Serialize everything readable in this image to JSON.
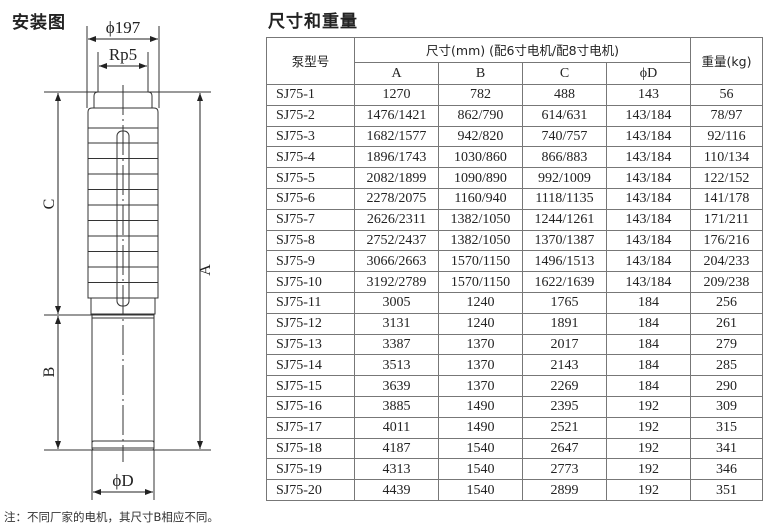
{
  "drawing": {
    "title": "安装图",
    "labels": {
      "outer_diameter": "ϕ197",
      "outlet": "Rp5",
      "dim_a": "A",
      "dim_b": "B",
      "dim_c": "C",
      "dim_d": "ϕD"
    },
    "note": "注：不同厂家的电机，其尺寸B相应不同。"
  },
  "table": {
    "title": "尺寸和重量",
    "header": {
      "model": "泵型号",
      "dims_group": "尺寸(mm) (配6寸电机/配8寸电机)",
      "weight": "重量(kg)",
      "cols": [
        "A",
        "B",
        "C",
        "ϕD"
      ]
    },
    "rows": [
      [
        "SJ75-1",
        "1270",
        "782",
        "488",
        "143",
        "56"
      ],
      [
        "SJ75-2",
        "1476/1421",
        "862/790",
        "614/631",
        "143/184",
        "78/97"
      ],
      [
        "SJ75-3",
        "1682/1577",
        "942/820",
        "740/757",
        "143/184",
        "92/116"
      ],
      [
        "SJ75-4",
        "1896/1743",
        "1030/860",
        "866/883",
        "143/184",
        "110/134"
      ],
      [
        "SJ75-5",
        "2082/1899",
        "1090/890",
        "992/1009",
        "143/184",
        "122/152"
      ],
      [
        "SJ75-6",
        "2278/2075",
        "1160/940",
        "1118/1135",
        "143/184",
        "141/178"
      ],
      [
        "SJ75-7",
        "2626/2311",
        "1382/1050",
        "1244/1261",
        "143/184",
        "171/211"
      ],
      [
        "SJ75-8",
        "2752/2437",
        "1382/1050",
        "1370/1387",
        "143/184",
        "176/216"
      ],
      [
        "SJ75-9",
        "3066/2663",
        "1570/1150",
        "1496/1513",
        "143/184",
        "204/233"
      ],
      [
        "SJ75-10",
        "3192/2789",
        "1570/1150",
        "1622/1639",
        "143/184",
        "209/238"
      ],
      [
        "SJ75-11",
        "3005",
        "1240",
        "1765",
        "184",
        "256"
      ],
      [
        "SJ75-12",
        "3131",
        "1240",
        "1891",
        "184",
        "261"
      ],
      [
        "SJ75-13",
        "3387",
        "1370",
        "2017",
        "184",
        "279"
      ],
      [
        "SJ75-14",
        "3513",
        "1370",
        "2143",
        "184",
        "285"
      ],
      [
        "SJ75-15",
        "3639",
        "1370",
        "2269",
        "184",
        "290"
      ],
      [
        "SJ75-16",
        "3885",
        "1490",
        "2395",
        "192",
        "309"
      ],
      [
        "SJ75-17",
        "4011",
        "1490",
        "2521",
        "192",
        "315"
      ],
      [
        "SJ75-18",
        "4187",
        "1540",
        "2647",
        "192",
        "341"
      ],
      [
        "SJ75-19",
        "4313",
        "1540",
        "2773",
        "192",
        "346"
      ],
      [
        "SJ75-20",
        "4439",
        "1540",
        "2899",
        "192",
        "351"
      ]
    ]
  }
}
